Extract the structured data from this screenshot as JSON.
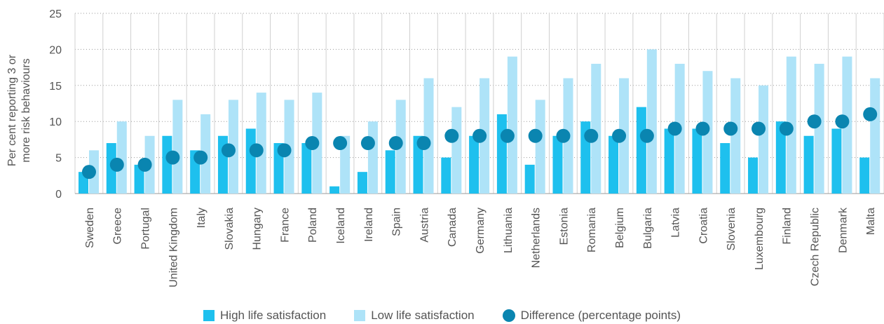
{
  "chart_data": {
    "type": "bar",
    "ylabel": "Per cent reporting 3 or more risk behaviours",
    "ylim": [
      0,
      25
    ],
    "yticks": [
      0,
      5,
      10,
      15,
      20,
      25
    ],
    "grid": true,
    "legend_position": "bottom-center",
    "categories": [
      "Sweden",
      "Greece",
      "Portugal",
      "United Kingdom",
      "Italy",
      "Slovakia",
      "Hungary",
      "France",
      "Poland",
      "Iceland",
      "Ireland",
      "Spain",
      "Austria",
      "Canada",
      "Germany",
      "Lithuania",
      "Netherlands",
      "Estonia",
      "Romania",
      "Belgium",
      "Bulgaria",
      "Latvia",
      "Croatia",
      "Slovenia",
      "Luxembourg",
      "Finland",
      "Czech Republic",
      "Denmark",
      "Malta"
    ],
    "series": [
      {
        "name": "High life satisfaction",
        "type": "bar",
        "color": "#1ec0ee",
        "values": [
          3,
          7,
          4,
          8,
          6,
          8,
          9,
          7,
          7,
          1,
          3,
          6,
          8,
          5,
          8,
          11,
          4,
          8,
          10,
          8,
          12,
          9,
          9,
          7,
          5,
          10,
          8,
          9,
          5
        ]
      },
      {
        "name": "Low life satisfaction",
        "type": "bar",
        "color": "#aee3f8",
        "values": [
          6,
          10,
          8,
          13,
          11,
          13,
          14,
          13,
          14,
          8,
          10,
          13,
          16,
          12,
          16,
          19,
          13,
          16,
          18,
          16,
          20,
          18,
          17,
          16,
          15,
          19,
          18,
          19,
          16
        ]
      },
      {
        "name": "Difference (percentage points)",
        "type": "scatter",
        "color": "#0a85b0",
        "values": [
          3,
          4,
          4,
          5,
          5,
          6,
          6,
          6,
          7,
          7,
          7,
          7,
          7,
          8,
          8,
          8,
          8,
          8,
          8,
          8,
          8,
          9,
          9,
          9,
          9,
          9,
          10,
          10,
          11
        ]
      }
    ]
  },
  "legend": {
    "high": "High life satisfaction",
    "low": "Low life satisfaction",
    "diff": "Difference (percentage points)"
  }
}
